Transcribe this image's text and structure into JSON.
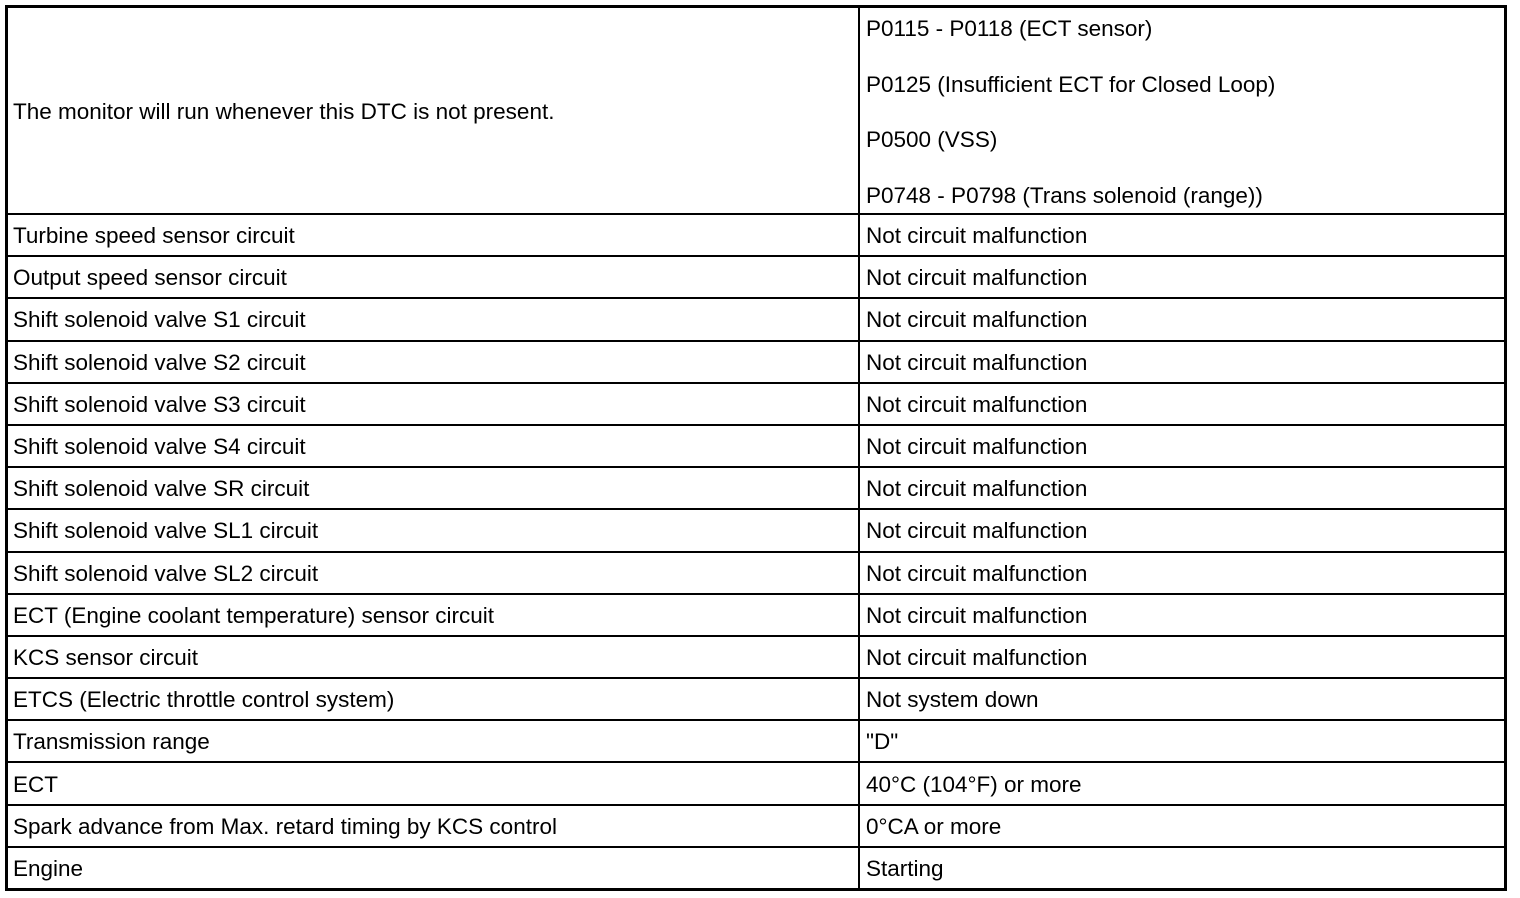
{
  "table": {
    "first_row": {
      "condition": "The monitor will run whenever this DTC is not present.",
      "dtcs": [
        "P0115 - P0118 (ECT sensor)",
        "P0125 (Insufficient ECT for Closed Loop)",
        "P0500 (VSS)",
        "P0748 - P0798 (Trans solenoid (range))"
      ]
    },
    "rows": [
      {
        "item": "Turbine speed sensor circuit",
        "value": "Not circuit malfunction"
      },
      {
        "item": "Output speed sensor circuit",
        "value": "Not circuit malfunction"
      },
      {
        "item": "Shift solenoid valve S1 circuit",
        "value": "Not circuit malfunction"
      },
      {
        "item": "Shift solenoid valve S2 circuit",
        "value": "Not circuit malfunction"
      },
      {
        "item": "Shift solenoid valve S3 circuit",
        "value": "Not circuit malfunction"
      },
      {
        "item": "Shift solenoid valve S4 circuit",
        "value": "Not circuit malfunction"
      },
      {
        "item": "Shift solenoid valve SR circuit",
        "value": "Not circuit malfunction"
      },
      {
        "item": "Shift solenoid valve SL1 circuit",
        "value": "Not circuit malfunction"
      },
      {
        "item": "Shift solenoid valve SL2 circuit",
        "value": "Not circuit malfunction"
      },
      {
        "item": "ECT (Engine coolant temperature) sensor circuit",
        "value": "Not circuit malfunction"
      },
      {
        "item": "KCS sensor circuit",
        "value": "Not circuit malfunction"
      },
      {
        "item": "ETCS (Electric throttle control system)",
        "value": "Not system down"
      },
      {
        "item": "Transmission range",
        "value": "\"D\""
      },
      {
        "item": "ECT",
        "value": "40°C (104°F) or more"
      },
      {
        "item": "Spark advance from Max. retard timing by KCS control",
        "value": "0°CA or more"
      },
      {
        "item": "Engine",
        "value": "Starting"
      }
    ]
  }
}
